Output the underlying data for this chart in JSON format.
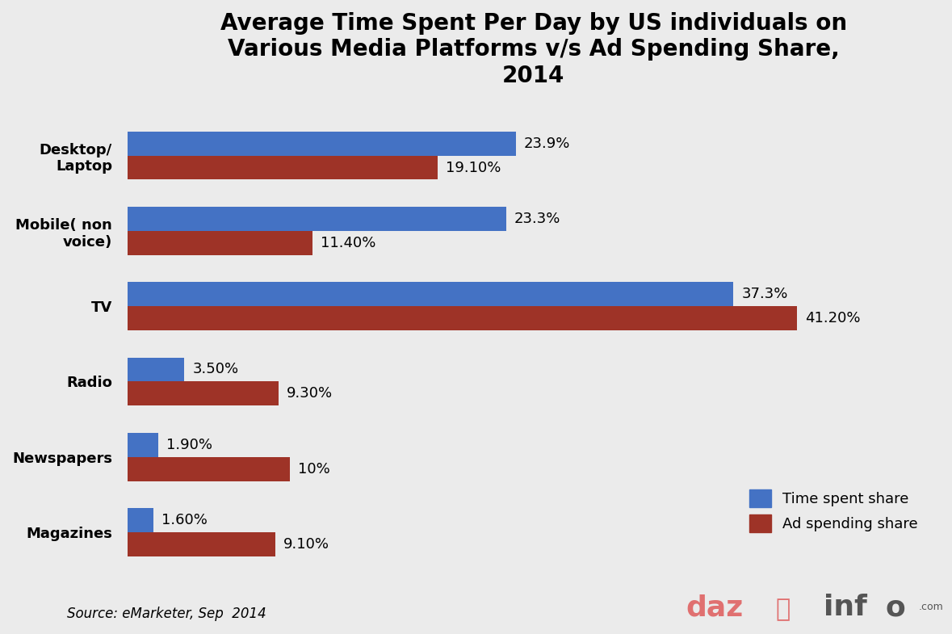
{
  "title": "Average Time Spent Per Day by US individuals on\nVarious Media Platforms v/s Ad Spending Share,\n2014",
  "categories": [
    "Desktop/\nLaptop",
    "Mobile( non\nvoice)",
    "TV",
    "Radio",
    "Newspapers",
    "Magazines"
  ],
  "time_spent": [
    23.9,
    23.3,
    37.3,
    3.5,
    1.9,
    1.6
  ],
  "ad_spending": [
    19.1,
    11.4,
    41.2,
    9.3,
    10.0,
    9.1
  ],
  "time_labels": [
    "23.9%",
    "23.3%",
    "37.3%",
    "3.50%",
    "1.90%",
    "1.60%"
  ],
  "ad_labels": [
    "19.10%",
    "11.40%",
    "41.20%",
    "9.30%",
    "10%",
    "9.10%"
  ],
  "time_color": "#4472C4",
  "ad_color": "#9E3327",
  "background_color": "#EBEBEB",
  "bar_height": 0.32,
  "xlim": [
    0,
    50
  ],
  "source_text": "Source: eMarketer, Sep  2014",
  "legend_time": "Time spent share",
  "legend_ad": "Ad spending share",
  "title_fontsize": 20,
  "label_fontsize": 13,
  "tick_fontsize": 13,
  "source_fontsize": 12
}
